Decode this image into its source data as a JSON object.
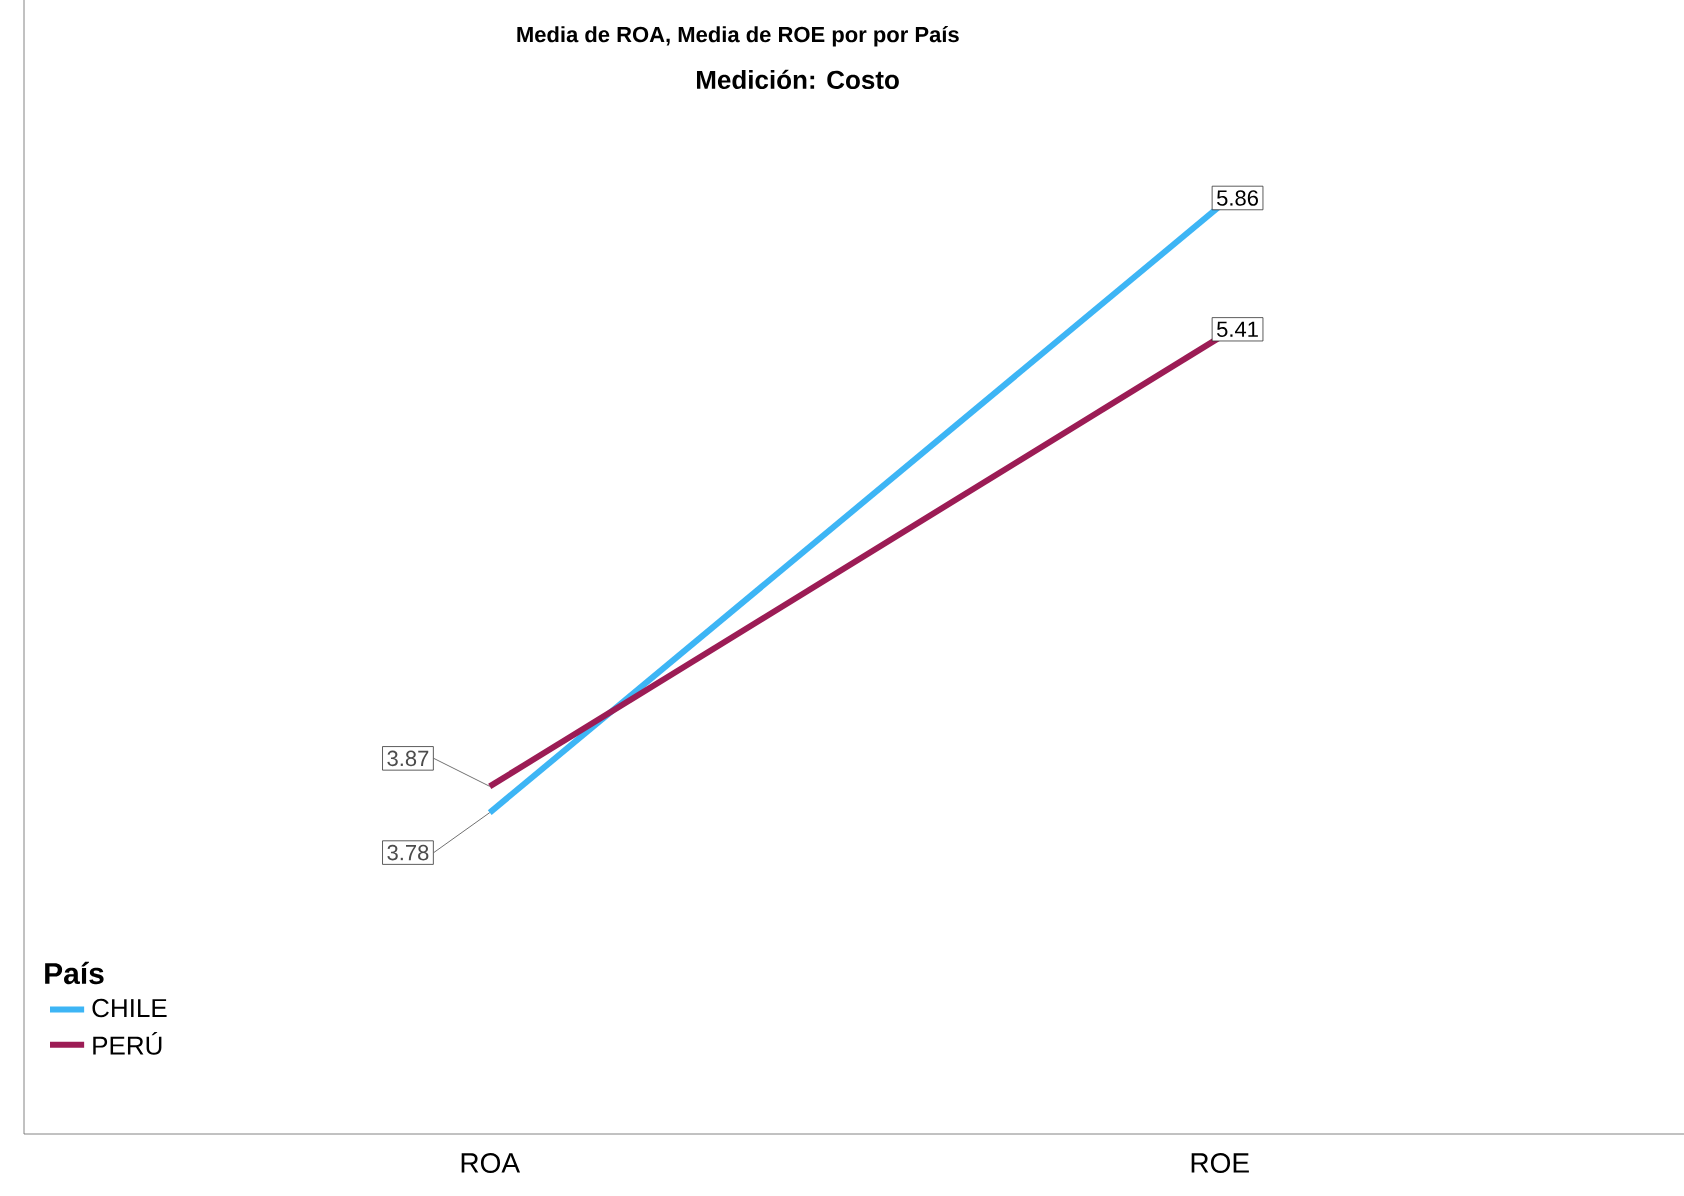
{
  "chart_data": {
    "type": "line",
    "title": "Media de ROA, Media de ROE por  por País",
    "subtitle": "Medición: Costo",
    "legend_title": "País",
    "categories": [
      "ROA",
      "ROE"
    ],
    "series": [
      {
        "name": "CHILE",
        "color": "#3db5f5",
        "values": [
          3.78,
          5.86
        ],
        "value_labels": [
          "3.78",
          "5.86"
        ]
      },
      {
        "name": "PERÚ",
        "color": "#9c1c55",
        "values": [
          3.87,
          5.41
        ],
        "value_labels": [
          "3.87",
          "5.41"
        ]
      }
    ],
    "legend": "bottom left",
    "tick_labels": "x",
    "marker": "none",
    "line_style": "solid"
  }
}
